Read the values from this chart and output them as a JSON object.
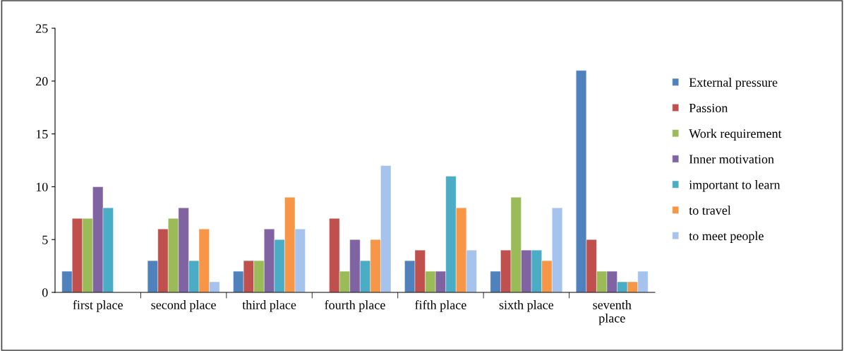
{
  "chart_data": {
    "type": "bar",
    "categories": [
      "first place",
      "second place",
      "third place",
      "fourth place",
      "fifth place",
      "sixth place",
      "seventh\nplace"
    ],
    "series": [
      {
        "name": "External pressure",
        "color": "#4f81bd",
        "values": [
          2,
          3,
          2,
          null,
          3,
          2,
          21
        ]
      },
      {
        "name": "Passion",
        "color": "#c0504d",
        "values": [
          7,
          6,
          3,
          7,
          4,
          4,
          5
        ]
      },
      {
        "name": "Work requirement",
        "color": "#9bbb59",
        "values": [
          7,
          7,
          3,
          2,
          2,
          9,
          2
        ]
      },
      {
        "name": "Inner motivation",
        "color": "#8064a2",
        "values": [
          10,
          8,
          6,
          5,
          2,
          4,
          2
        ]
      },
      {
        "name": "important to learn",
        "color": "#4bacc6",
        "values": [
          8,
          3,
          5,
          3,
          11,
          4,
          1
        ]
      },
      {
        "name": "to travel",
        "color": "#f79646",
        "values": [
          null,
          6,
          9,
          5,
          8,
          3,
          1
        ]
      },
      {
        "name": "to meet people",
        "color": "#a6c3ee",
        "values": [
          null,
          1,
          6,
          12,
          4,
          8,
          2
        ]
      }
    ],
    "ylim": [
      0,
      25
    ],
    "yticks": [
      0,
      5,
      10,
      15,
      20,
      25
    ],
    "grid": false,
    "legend": "right"
  }
}
